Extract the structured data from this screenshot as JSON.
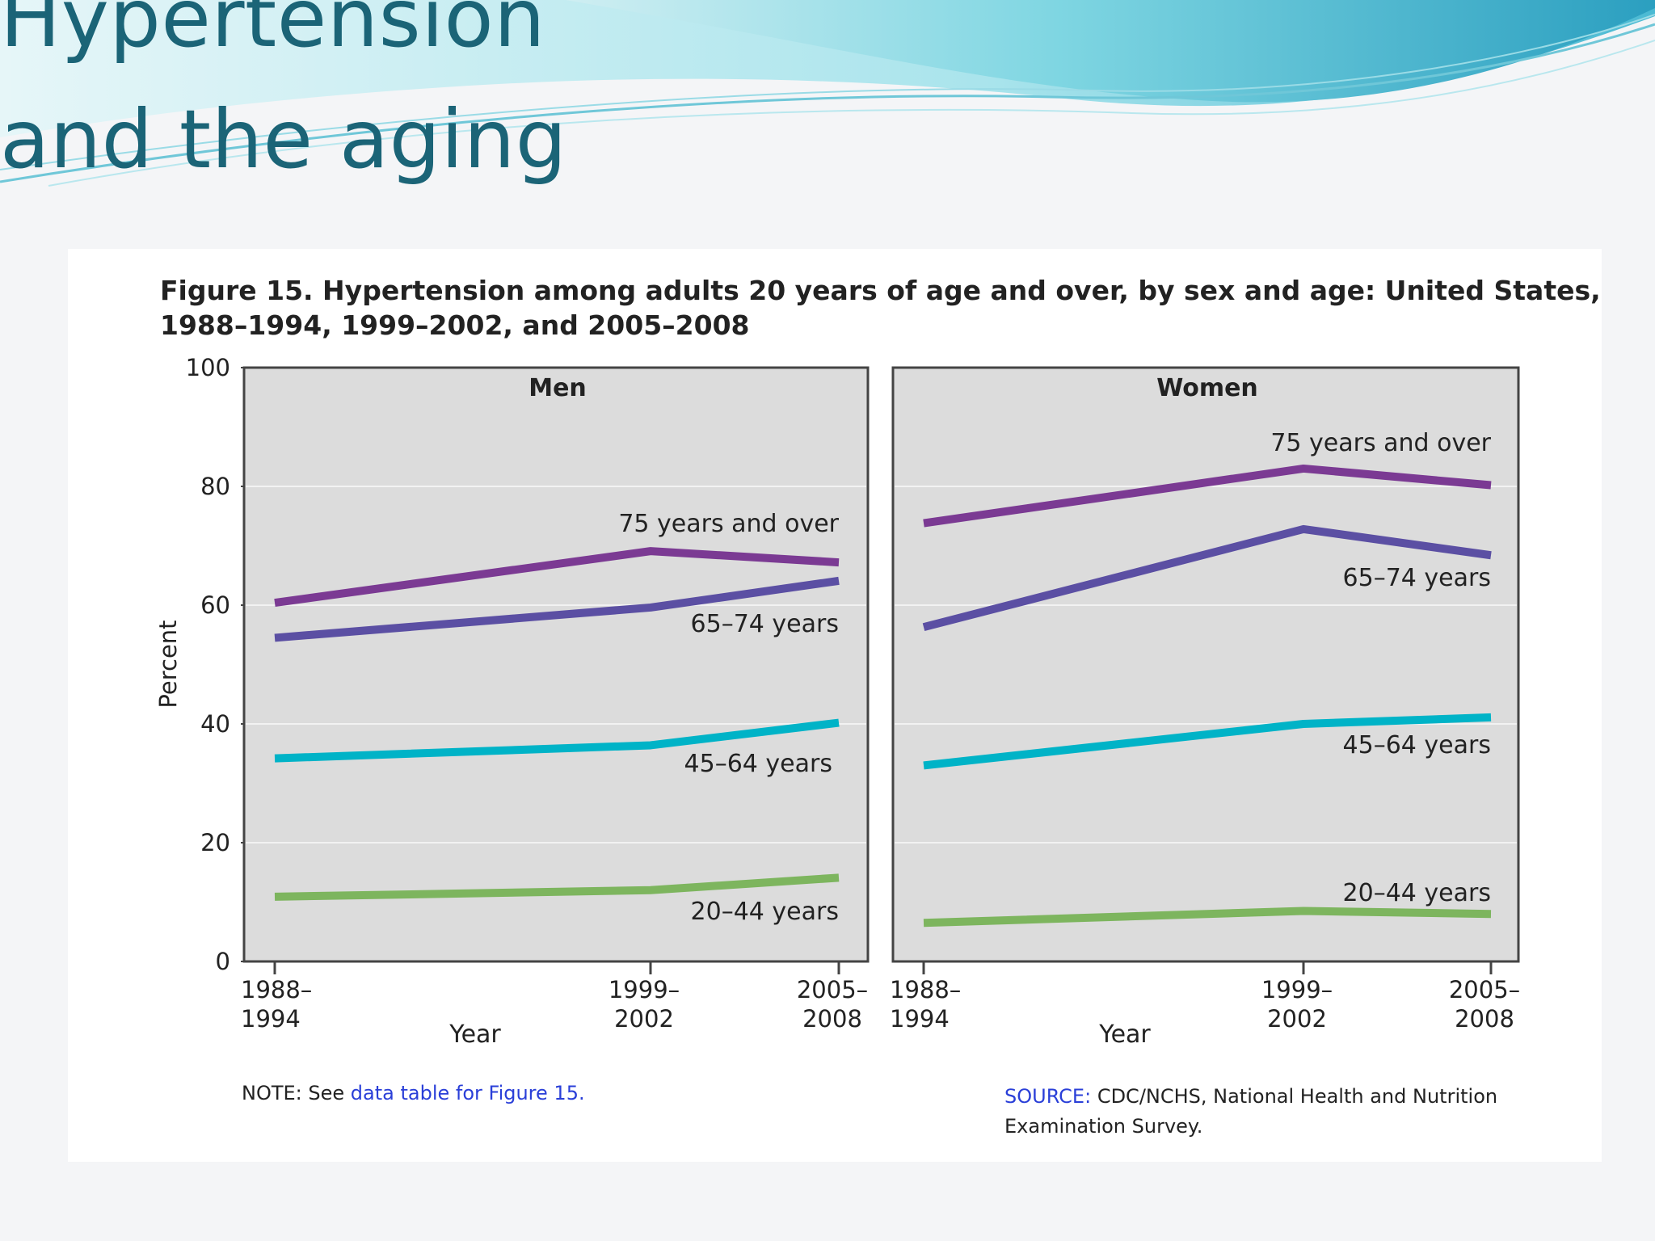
{
  "slide": {
    "title_line1": "Hypertension",
    "title_line2": "and the aging"
  },
  "figure": {
    "title_line1": "Figure 15. Hypertension among adults 20 years of age and over, by sex and age: United States,",
    "title_line2": "1988–1994, 1999–2002, and 2005–2008",
    "note_prefix": "NOTE: See ",
    "note_link": "data table for Figure 15.",
    "source_label": "SOURCE:",
    "source_text": " CDC/NCHS, National Health and Nutrition Examination Survey."
  },
  "colors": {
    "title": "#1b6477",
    "plot_bg": "#dcdcdc",
    "gridline": "#f2f2f2",
    "link": "#2a3fd8",
    "age75": "#7b3a93",
    "age65": "#5b4fa3",
    "age45": "#00b3c7",
    "age20": "#7db55e"
  },
  "chart_data": [
    {
      "type": "line",
      "title": "Men",
      "xlabel": "Year",
      "ylabel": "Percent",
      "ylim": [
        0,
        100
      ],
      "yticks": [
        "0",
        "20",
        "40",
        "60",
        "80",
        "100"
      ],
      "categories": [
        "1988–1994",
        "1999–2002",
        "2005–2008"
      ],
      "grid": true,
      "series": [
        {
          "name": "75 years and over",
          "values": [
            60.4,
            69.1,
            67.2
          ],
          "color": "#7b3a93"
        },
        {
          "name": "65–74 years",
          "values": [
            54.5,
            59.6,
            64.1
          ],
          "color": "#5b4fa3"
        },
        {
          "name": "45–64 years",
          "values": [
            34.2,
            36.4,
            40.2
          ],
          "color": "#00b3c7"
        },
        {
          "name": "20–44 years",
          "values": [
            10.9,
            12.0,
            14.1
          ],
          "color": "#7db55e"
        }
      ]
    },
    {
      "type": "line",
      "title": "Women",
      "xlabel": "Year",
      "ylabel": "Percent",
      "ylim": [
        0,
        100
      ],
      "yticks": [
        "0",
        "20",
        "40",
        "60",
        "80",
        "100"
      ],
      "categories": [
        "1988–1994",
        "1999–2002",
        "2005–2008"
      ],
      "grid": true,
      "series": [
        {
          "name": "75 years and over",
          "values": [
            73.8,
            83.0,
            80.2
          ],
          "color": "#7b3a93"
        },
        {
          "name": "65–74 years",
          "values": [
            56.3,
            72.8,
            68.4
          ],
          "color": "#5b4fa3"
        },
        {
          "name": "45–64 years",
          "values": [
            33.0,
            40.0,
            41.1
          ],
          "color": "#00b3c7"
        },
        {
          "name": "20–44 years",
          "values": [
            6.5,
            8.5,
            8.0
          ],
          "color": "#7db55e"
        }
      ]
    }
  ]
}
